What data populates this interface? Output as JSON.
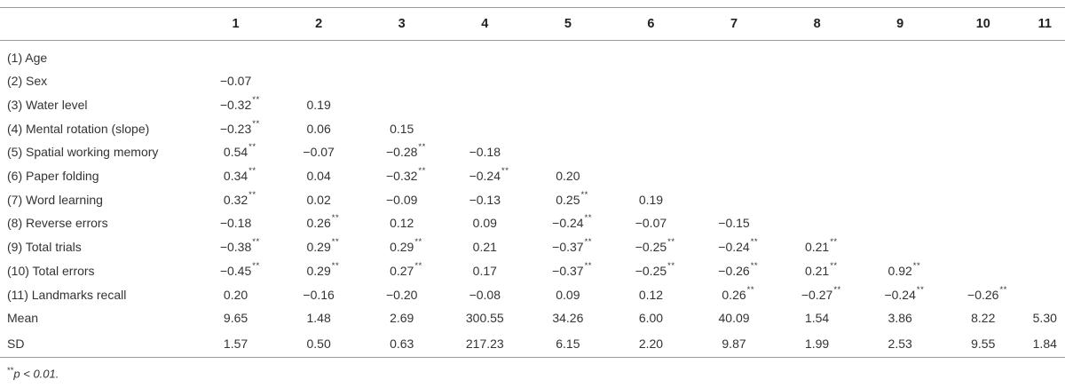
{
  "table": {
    "columns": [
      "1",
      "2",
      "3",
      "4",
      "5",
      "6",
      "7",
      "8",
      "9",
      "10",
      "11"
    ],
    "rows": [
      {
        "label": "(1) Age",
        "cells": []
      },
      {
        "label": "(2) Sex",
        "cells": [
          [
            "−0.07",
            ""
          ]
        ]
      },
      {
        "label": "(3) Water level",
        "cells": [
          [
            "−0.32",
            "**"
          ],
          [
            "0.19",
            ""
          ]
        ]
      },
      {
        "label": "(4) Mental rotation (slope)",
        "cells": [
          [
            "−0.23",
            "**"
          ],
          [
            "0.06",
            ""
          ],
          [
            "0.15",
            ""
          ]
        ]
      },
      {
        "label": "(5) Spatial working memory",
        "cells": [
          [
            "0.54",
            "**"
          ],
          [
            "−0.07",
            ""
          ],
          [
            "−0.28",
            "**"
          ],
          [
            "−0.18",
            ""
          ]
        ]
      },
      {
        "label": "(6) Paper folding",
        "cells": [
          [
            "0.34",
            "**"
          ],
          [
            "0.04",
            ""
          ],
          [
            "−0.32",
            "**"
          ],
          [
            "−0.24",
            "**"
          ],
          [
            "0.20",
            ""
          ]
        ]
      },
      {
        "label": "(7) Word learning",
        "cells": [
          [
            "0.32",
            "**"
          ],
          [
            "0.02",
            ""
          ],
          [
            "−0.09",
            ""
          ],
          [
            "−0.13",
            ""
          ],
          [
            "0.25",
            "**"
          ],
          [
            "0.19",
            ""
          ]
        ]
      },
      {
        "label": "(8) Reverse errors",
        "cells": [
          [
            "−0.18",
            ""
          ],
          [
            "0.26",
            "**"
          ],
          [
            "0.12",
            ""
          ],
          [
            "0.09",
            ""
          ],
          [
            "−0.24",
            "**"
          ],
          [
            "−0.07",
            ""
          ],
          [
            "−0.15",
            ""
          ]
        ]
      },
      {
        "label": "(9) Total trials",
        "cells": [
          [
            "−0.38",
            "**"
          ],
          [
            "0.29",
            "**"
          ],
          [
            "0.29",
            "**"
          ],
          [
            "0.21",
            ""
          ],
          [
            "−0.37",
            "**"
          ],
          [
            "−0.25",
            "**"
          ],
          [
            "−0.24",
            "**"
          ],
          [
            "0.21",
            "**"
          ]
        ]
      },
      {
        "label": "(10) Total errors",
        "cells": [
          [
            "−0.45",
            "**"
          ],
          [
            "0.29",
            "**"
          ],
          [
            "0.27",
            "**"
          ],
          [
            "0.17",
            ""
          ],
          [
            "−0.37",
            "**"
          ],
          [
            "−0.25",
            "**"
          ],
          [
            "−0.26",
            "**"
          ],
          [
            "0.21",
            "**"
          ],
          [
            "0.92",
            "**"
          ]
        ]
      },
      {
        "label": "(11) Landmarks recall",
        "cells": [
          [
            "0.20",
            ""
          ],
          [
            "−0.16",
            ""
          ],
          [
            "−0.20",
            ""
          ],
          [
            "−0.08",
            ""
          ],
          [
            "0.09",
            ""
          ],
          [
            "0.12",
            ""
          ],
          [
            "0.26",
            "**"
          ],
          [
            "−0.27",
            "**"
          ],
          [
            "−0.24",
            "**"
          ],
          [
            "−0.26",
            "**"
          ]
        ]
      },
      {
        "label": "Mean",
        "cells": [
          [
            "9.65",
            ""
          ],
          [
            "1.48",
            ""
          ],
          [
            "2.69",
            ""
          ],
          [
            "300.55",
            ""
          ],
          [
            "34.26",
            ""
          ],
          [
            "6.00",
            ""
          ],
          [
            "40.09",
            ""
          ],
          [
            "1.54",
            ""
          ],
          [
            "3.86",
            ""
          ],
          [
            "8.22",
            ""
          ],
          [
            "5.30",
            ""
          ]
        ]
      },
      {
        "label": "SD",
        "cells": [
          [
            "1.57",
            ""
          ],
          [
            "0.50",
            ""
          ],
          [
            "0.63",
            ""
          ],
          [
            "217.23",
            ""
          ],
          [
            "6.15",
            ""
          ],
          [
            "2.20",
            ""
          ],
          [
            "9.87",
            ""
          ],
          [
            "1.99",
            ""
          ],
          [
            "2.53",
            ""
          ],
          [
            "9.55",
            ""
          ],
          [
            "1.84",
            ""
          ]
        ]
      }
    ]
  },
  "footnote": {
    "stars": "**",
    "text": "p < 0.01."
  }
}
